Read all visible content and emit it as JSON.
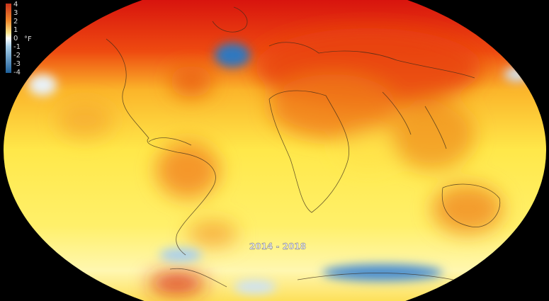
{
  "legend": {
    "unit": "°F",
    "ticks": [
      4,
      3,
      2,
      1,
      0,
      -1,
      -2,
      -3,
      -4
    ]
  },
  "period": "2014 - 2018"
}
